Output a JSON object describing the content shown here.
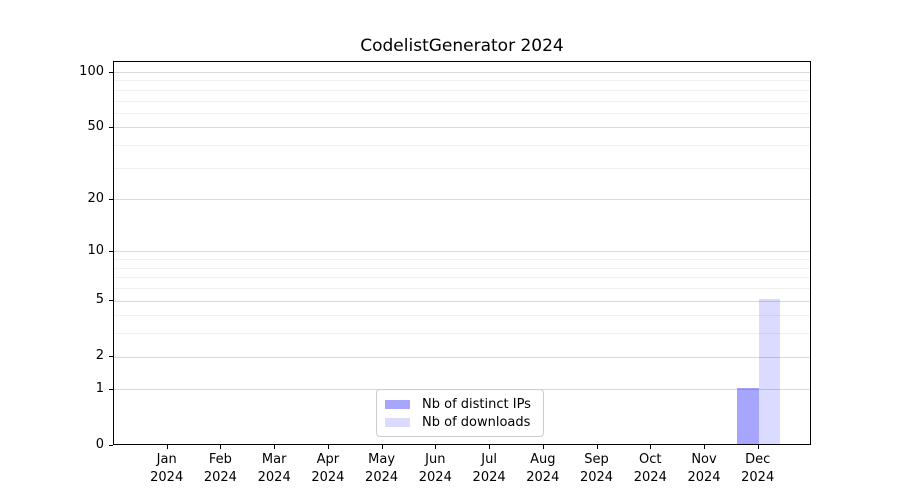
{
  "chart_data": {
    "type": "bar",
    "title": "CodelistGenerator 2024",
    "categories": [
      {
        "month": "Jan",
        "year": "2024"
      },
      {
        "month": "Feb",
        "year": "2024"
      },
      {
        "month": "Mar",
        "year": "2024"
      },
      {
        "month": "Apr",
        "year": "2024"
      },
      {
        "month": "May",
        "year": "2024"
      },
      {
        "month": "Jun",
        "year": "2024"
      },
      {
        "month": "Jul",
        "year": "2024"
      },
      {
        "month": "Aug",
        "year": "2024"
      },
      {
        "month": "Sep",
        "year": "2024"
      },
      {
        "month": "Oct",
        "year": "2024"
      },
      {
        "month": "Nov",
        "year": "2024"
      },
      {
        "month": "Dec",
        "year": "2024"
      }
    ],
    "series": [
      {
        "name": "Nb of distinct IPs",
        "color": "rgba(0,0,255,0.35)",
        "values": [
          0,
          0,
          0,
          0,
          0,
          0,
          0,
          0,
          0,
          0,
          0,
          1
        ]
      },
      {
        "name": "Nb of downloads",
        "color": "rgba(0,0,255,0.14)",
        "values": [
          0,
          0,
          0,
          0,
          0,
          0,
          0,
          0,
          0,
          0,
          0,
          5
        ]
      }
    ],
    "xlabel": "",
    "ylabel": "",
    "yscale": "log1p",
    "ylim": [
      0,
      114
    ],
    "y_major_ticks": [
      0,
      1,
      2,
      5,
      10,
      20,
      50,
      100
    ],
    "y_minor_gridlines": [
      3,
      4,
      6,
      7,
      8,
      9,
      30,
      40,
      60,
      70,
      80,
      90
    ],
    "grid": "horizontal",
    "legend_position": "bottom-center"
  }
}
